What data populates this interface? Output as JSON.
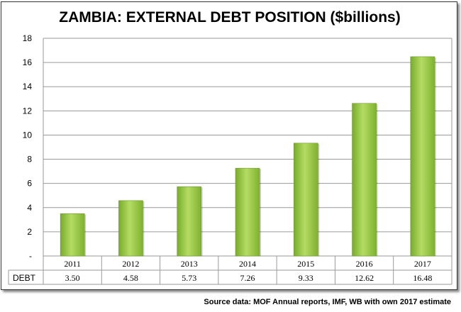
{
  "chart_data": {
    "type": "bar",
    "title": "ZAMBIA: EXTERNAL DEBT POSITION ($billions)",
    "categories": [
      "2011",
      "2012",
      "2013",
      "2014",
      "2015",
      "2016",
      "2017"
    ],
    "series": [
      {
        "name": "DEBT",
        "values": [
          3.5,
          4.58,
          5.73,
          7.26,
          9.33,
          12.62,
          16.48
        ]
      }
    ],
    "table_values": [
      "3.50",
      "4.58",
      "5.73",
      "7.26",
      "9.33",
      "12.62",
      "16.48"
    ],
    "y_ticks": [
      "-",
      "2",
      "4",
      "6",
      "8",
      "10",
      "12",
      "14",
      "16",
      "18"
    ],
    "ylim": [
      0,
      18
    ],
    "grid": true,
    "data_table": true,
    "bar_color": "#92c83e"
  },
  "source_note": "Source data: MOF Annual reports, IMF, WB with own 2017 estimate"
}
